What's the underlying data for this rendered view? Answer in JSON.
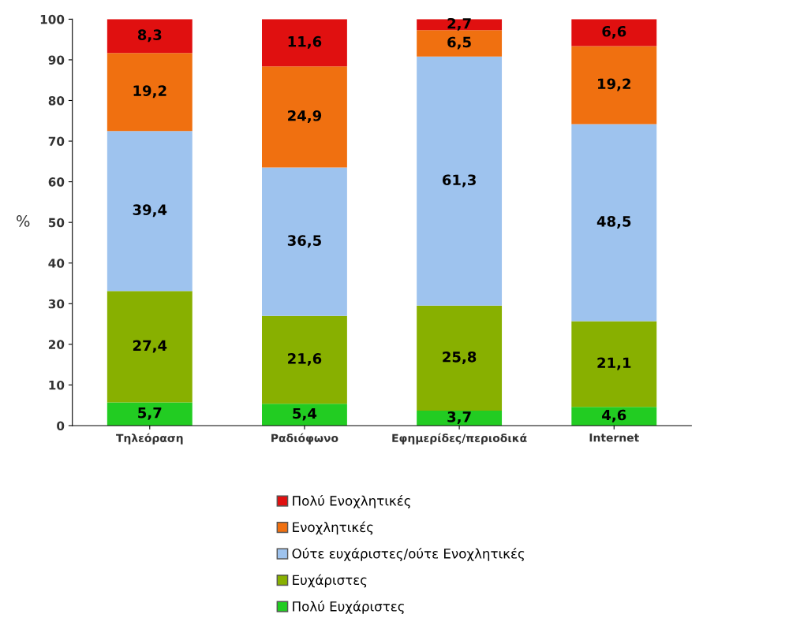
{
  "chart_data": {
    "type": "bar",
    "stacked": true,
    "categories": [
      "Τηλεόραση",
      "Ραδιόφωνο",
      "Εφημερίδες/περιοδικά",
      "Internet"
    ],
    "ylabel": "%",
    "ylim": [
      0,
      100
    ],
    "yticks": [
      0,
      10,
      20,
      30,
      40,
      50,
      60,
      70,
      80,
      90,
      100
    ],
    "grid": false,
    "legend": "bottom",
    "series": [
      {
        "name": "Πολύ Ευχάριστες",
        "color": "#22cc22",
        "values": [
          5.7,
          5.4,
          3.7,
          4.6
        ],
        "value_labels": [
          "5,7",
          "5,4",
          "3,7",
          "4,6"
        ]
      },
      {
        "name": "Ευχάριστες",
        "color": "#88b000",
        "values": [
          27.4,
          21.6,
          25.8,
          21.1
        ],
        "value_labels": [
          "27,4",
          "21,6",
          "25,8",
          "21,1"
        ]
      },
      {
        "name": "Ούτε ευχάριστες/ούτε Ενοχλητικές",
        "color": "#9ec3ee",
        "values": [
          39.4,
          36.5,
          61.3,
          48.5
        ],
        "value_labels": [
          "39,4",
          "36,5",
          "61,3",
          "48,5"
        ]
      },
      {
        "name": "Ενοχλητικές",
        "color": "#f07010",
        "values": [
          19.2,
          24.9,
          6.5,
          19.2
        ],
        "value_labels": [
          "19,2",
          "24,9",
          "6,5",
          "19,2"
        ]
      },
      {
        "name": "Πολύ Ενοχλητικές",
        "color": "#e01010",
        "values": [
          8.3,
          11.6,
          2.7,
          6.6
        ],
        "value_labels": [
          "8,3",
          "11,6",
          "2,7",
          "6,6"
        ]
      }
    ]
  }
}
